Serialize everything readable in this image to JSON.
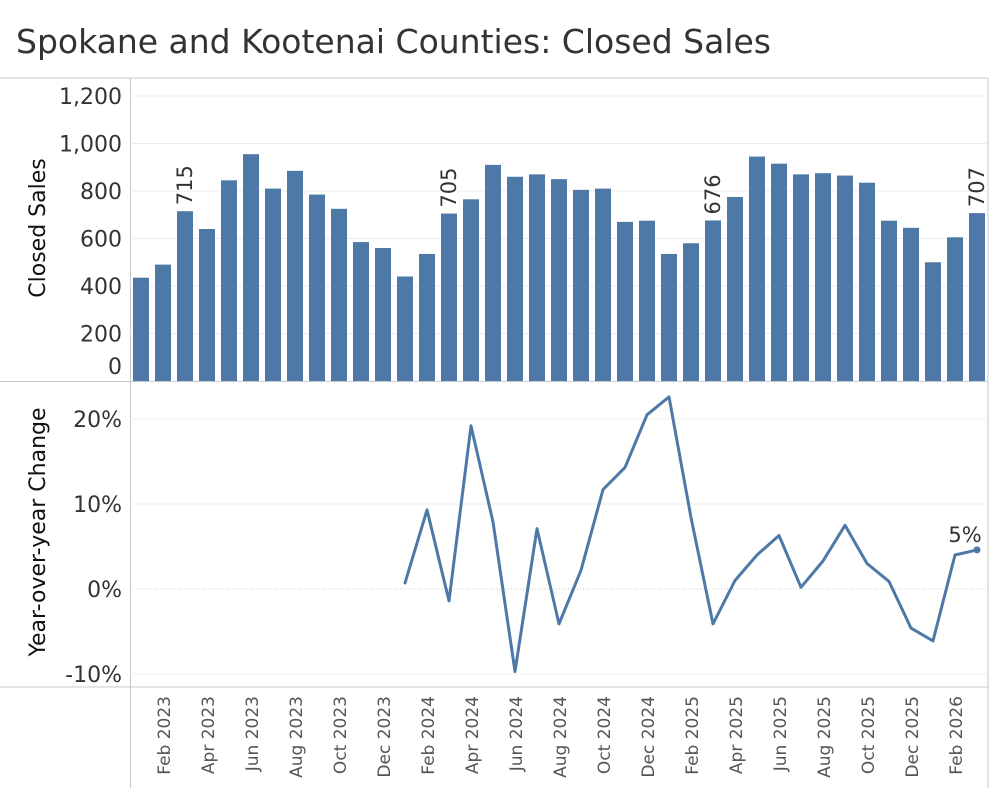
{
  "title": "Spokane and Kootenai Counties: Closed Sales",
  "colors": {
    "bar": "#4e79a7",
    "line": "#4e79a7",
    "gridline": "#ececec",
    "axis_line": "#c8c8c8",
    "zero_line": "#c8c8c8"
  },
  "chart_data": [
    {
      "type": "bar",
      "ylabel": "Closed Sales",
      "ylim": [
        0,
        1200
      ],
      "yticks": [
        0,
        200,
        400,
        600,
        800,
        1000,
        1200
      ],
      "ytick_labels": [
        "0",
        "200",
        "400",
        "600",
        "800",
        "1,000",
        "1,200"
      ],
      "grid": true,
      "categories": [
        "Jan 2023",
        "Feb 2023",
        "Mar 2023",
        "Apr 2023",
        "May 2023",
        "Jun 2023",
        "Jul 2023",
        "Aug 2023",
        "Sep 2023",
        "Oct 2023",
        "Nov 2023",
        "Dec 2023",
        "Jan 2024",
        "Feb 2024",
        "Mar 2024",
        "Apr 2024",
        "May 2024",
        "Jun 2024",
        "Jul 2024",
        "Aug 2024",
        "Sep 2024",
        "Oct 2024",
        "Nov 2024",
        "Dec 2024",
        "Jan 2025",
        "Feb 2025",
        "Mar 2025",
        "Apr 2025",
        "May 2025",
        "Jun 2025",
        "Jul 2025",
        "Aug 2025",
        "Sep 2025",
        "Oct 2025",
        "Nov 2025",
        "Dec 2025",
        "Jan 2026",
        "Feb 2026",
        "Mar 2026"
      ],
      "values": [
        435,
        490,
        715,
        640,
        845,
        955,
        810,
        885,
        785,
        725,
        585,
        560,
        440,
        535,
        705,
        765,
        910,
        860,
        870,
        850,
        805,
        810,
        670,
        675,
        535,
        580,
        676,
        775,
        945,
        915,
        870,
        875,
        865,
        835,
        675,
        645,
        500,
        605,
        707
      ],
      "data_labels": [
        {
          "category": "Mar 2023",
          "text": "715"
        },
        {
          "category": "Mar 2024",
          "text": "705"
        },
        {
          "category": "Mar 2025",
          "text": "676"
        },
        {
          "category": "Mar 2026",
          "text": "707"
        }
      ]
    },
    {
      "type": "line",
      "ylabel": "Year-over-year Change",
      "ylim": [
        -11,
        24
      ],
      "yticks": [
        -10,
        0,
        10,
        20
      ],
      "ytick_labels": [
        "-10%",
        "0%",
        "10%",
        "20%"
      ],
      "grid": true,
      "categories": [
        "Jan 2024",
        "Feb 2024",
        "Mar 2024",
        "Apr 2024",
        "May 2024",
        "Jun 2024",
        "Jul 2024",
        "Aug 2024",
        "Sep 2024",
        "Oct 2024",
        "Nov 2024",
        "Dec 2024",
        "Jan 2025",
        "Feb 2025",
        "Mar 2025",
        "Apr 2025",
        "May 2025",
        "Jun 2025",
        "Jul 2025",
        "Aug 2025",
        "Sep 2025",
        "Oct 2025",
        "Nov 2025",
        "Dec 2025",
        "Jan 2026",
        "Feb 2026",
        "Mar 2026"
      ],
      "values": [
        0.7,
        9.3,
        -1.4,
        19.2,
        7.9,
        -9.7,
        7.1,
        -4.1,
        2.2,
        11.7,
        14.3,
        20.5,
        22.6,
        8.4,
        -4.1,
        1.0,
        4.0,
        6.3,
        0.2,
        3.3,
        7.5,
        3.0,
        0.9,
        -4.6,
        -6.1,
        4.0,
        4.6
      ],
      "end_marker": true,
      "data_labels": [
        {
          "category": "Mar 2026",
          "text": "5%"
        }
      ]
    }
  ],
  "x_axis": {
    "tick_labels": [
      "Feb 2023",
      "Apr 2023",
      "Jun 2023",
      "Aug 2023",
      "Oct 2023",
      "Dec 2023",
      "Feb 2024",
      "Apr 2024",
      "Jun 2024",
      "Aug 2024",
      "Oct 2024",
      "Dec 2024",
      "Feb 2025",
      "Apr 2025",
      "Jun 2025",
      "Aug 2025",
      "Oct 2025",
      "Dec 2025",
      "Feb 2026"
    ]
  }
}
